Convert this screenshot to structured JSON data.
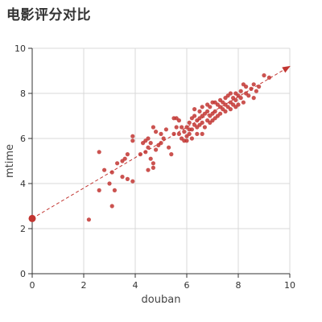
{
  "chart_data": {
    "type": "scatter",
    "title": "电影评分对比",
    "xlabel": "douban",
    "ylabel": "mtime",
    "xlim": [
      0,
      10
    ],
    "ylim": [
      0,
      10
    ],
    "xticks": [
      "0",
      "2",
      "4",
      "6",
      "8",
      "10"
    ],
    "yticks": [
      "0",
      "2",
      "4",
      "6",
      "8",
      "10"
    ],
    "grid": true,
    "point_color": "#c23531",
    "trend_line": {
      "from": [
        0,
        2.45
      ],
      "to": [
        10,
        9.2
      ],
      "style": "dashed-arrow",
      "color": "#c23531"
    },
    "highlight_point": [
      0,
      2.45
    ],
    "points": [
      [
        2.2,
        2.4
      ],
      [
        3.1,
        3.0
      ],
      [
        2.6,
        3.7
      ],
      [
        3.0,
        4.0
      ],
      [
        3.2,
        3.7
      ],
      [
        2.8,
        4.6
      ],
      [
        3.1,
        4.5
      ],
      [
        3.3,
        4.9
      ],
      [
        3.5,
        5.0
      ],
      [
        3.6,
        5.1
      ],
      [
        3.7,
        5.3
      ],
      [
        3.5,
        4.3
      ],
      [
        3.7,
        4.2
      ],
      [
        3.9,
        4.1
      ],
      [
        2.6,
        5.4
      ],
      [
        3.9,
        5.9
      ],
      [
        3.9,
        6.1
      ],
      [
        4.3,
        5.8
      ],
      [
        4.4,
        5.9
      ],
      [
        4.5,
        6.0
      ],
      [
        4.6,
        5.8
      ],
      [
        4.2,
        5.3
      ],
      [
        4.4,
        5.4
      ],
      [
        4.5,
        5.6
      ],
      [
        4.6,
        5.1
      ],
      [
        4.7,
        4.9
      ],
      [
        4.5,
        4.6
      ],
      [
        4.7,
        4.7
      ],
      [
        4.8,
        5.5
      ],
      [
        4.9,
        5.7
      ],
      [
        5.0,
        5.8
      ],
      [
        5.1,
        6.0
      ],
      [
        4.8,
        6.3
      ],
      [
        4.7,
        6.5
      ],
      [
        5.0,
        6.2
      ],
      [
        5.2,
        6.4
      ],
      [
        5.3,
        5.6
      ],
      [
        5.4,
        5.3
      ],
      [
        5.5,
        6.2
      ],
      [
        5.6,
        6.5
      ],
      [
        5.5,
        6.9
      ],
      [
        5.7,
        6.8
      ],
      [
        5.8,
        6.0
      ],
      [
        5.9,
        5.9
      ],
      [
        5.9,
        6.3
      ],
      [
        6.0,
        6.5
      ],
      [
        6.0,
        6.1
      ],
      [
        6.1,
        6.2
      ],
      [
        6.1,
        6.7
      ],
      [
        6.2,
        6.4
      ],
      [
        6.2,
        6.9
      ],
      [
        6.3,
        6.6
      ],
      [
        6.3,
        7.0
      ],
      [
        6.4,
        6.2
      ],
      [
        6.4,
        6.8
      ],
      [
        6.5,
        6.6
      ],
      [
        6.5,
        6.9
      ],
      [
        6.6,
        7.0
      ],
      [
        6.6,
        6.7
      ],
      [
        6.7,
        7.1
      ],
      [
        6.7,
        6.5
      ],
      [
        6.8,
        7.2
      ],
      [
        6.8,
        6.8
      ],
      [
        6.9,
        7.0
      ],
      [
        6.9,
        7.4
      ],
      [
        7.0,
        7.1
      ],
      [
        7.0,
        7.6
      ],
      [
        7.1,
        7.2
      ],
      [
        7.1,
        6.9
      ],
      [
        7.2,
        7.5
      ],
      [
        7.2,
        7.0
      ],
      [
        7.3,
        7.4
      ],
      [
        7.3,
        7.7
      ],
      [
        7.4,
        7.3
      ],
      [
        7.4,
        7.6
      ],
      [
        7.5,
        7.5
      ],
      [
        7.5,
        7.8
      ],
      [
        7.6,
        7.4
      ],
      [
        7.6,
        7.9
      ],
      [
        7.7,
        7.6
      ],
      [
        7.7,
        7.3
      ],
      [
        7.8,
        7.8
      ],
      [
        7.8,
        7.5
      ],
      [
        7.9,
        8.0
      ],
      [
        7.9,
        7.7
      ],
      [
        8.0,
        7.9
      ],
      [
        8.0,
        7.5
      ],
      [
        8.1,
        8.1
      ],
      [
        8.1,
        7.8
      ],
      [
        8.2,
        8.4
      ],
      [
        8.2,
        7.6
      ],
      [
        8.3,
        8.0
      ],
      [
        8.4,
        7.9
      ],
      [
        8.5,
        8.2
      ],
      [
        8.6,
        7.8
      ],
      [
        8.6,
        8.4
      ],
      [
        8.7,
        8.1
      ],
      [
        8.8,
        8.3
      ],
      [
        9.0,
        8.8
      ],
      [
        9.2,
        8.7
      ],
      [
        6.0,
        5.9
      ],
      [
        5.8,
        6.5
      ],
      [
        6.3,
        7.3
      ],
      [
        5.6,
        6.9
      ],
      [
        6.6,
        6.2
      ],
      [
        6.8,
        7.5
      ],
      [
        7.1,
        7.6
      ],
      [
        6.2,
        6.0
      ],
      [
        6.5,
        7.2
      ],
      [
        5.7,
        6.2
      ],
      [
        6.4,
        6.5
      ],
      [
        6.9,
        6.7
      ],
      [
        7.0,
        6.8
      ],
      [
        7.3,
        7.1
      ],
      [
        7.5,
        7.2
      ],
      [
        7.7,
        8.0
      ],
      [
        7.9,
        7.4
      ],
      [
        8.3,
        8.3
      ],
      [
        6.1,
        6.4
      ],
      [
        6.6,
        7.4
      ]
    ]
  }
}
